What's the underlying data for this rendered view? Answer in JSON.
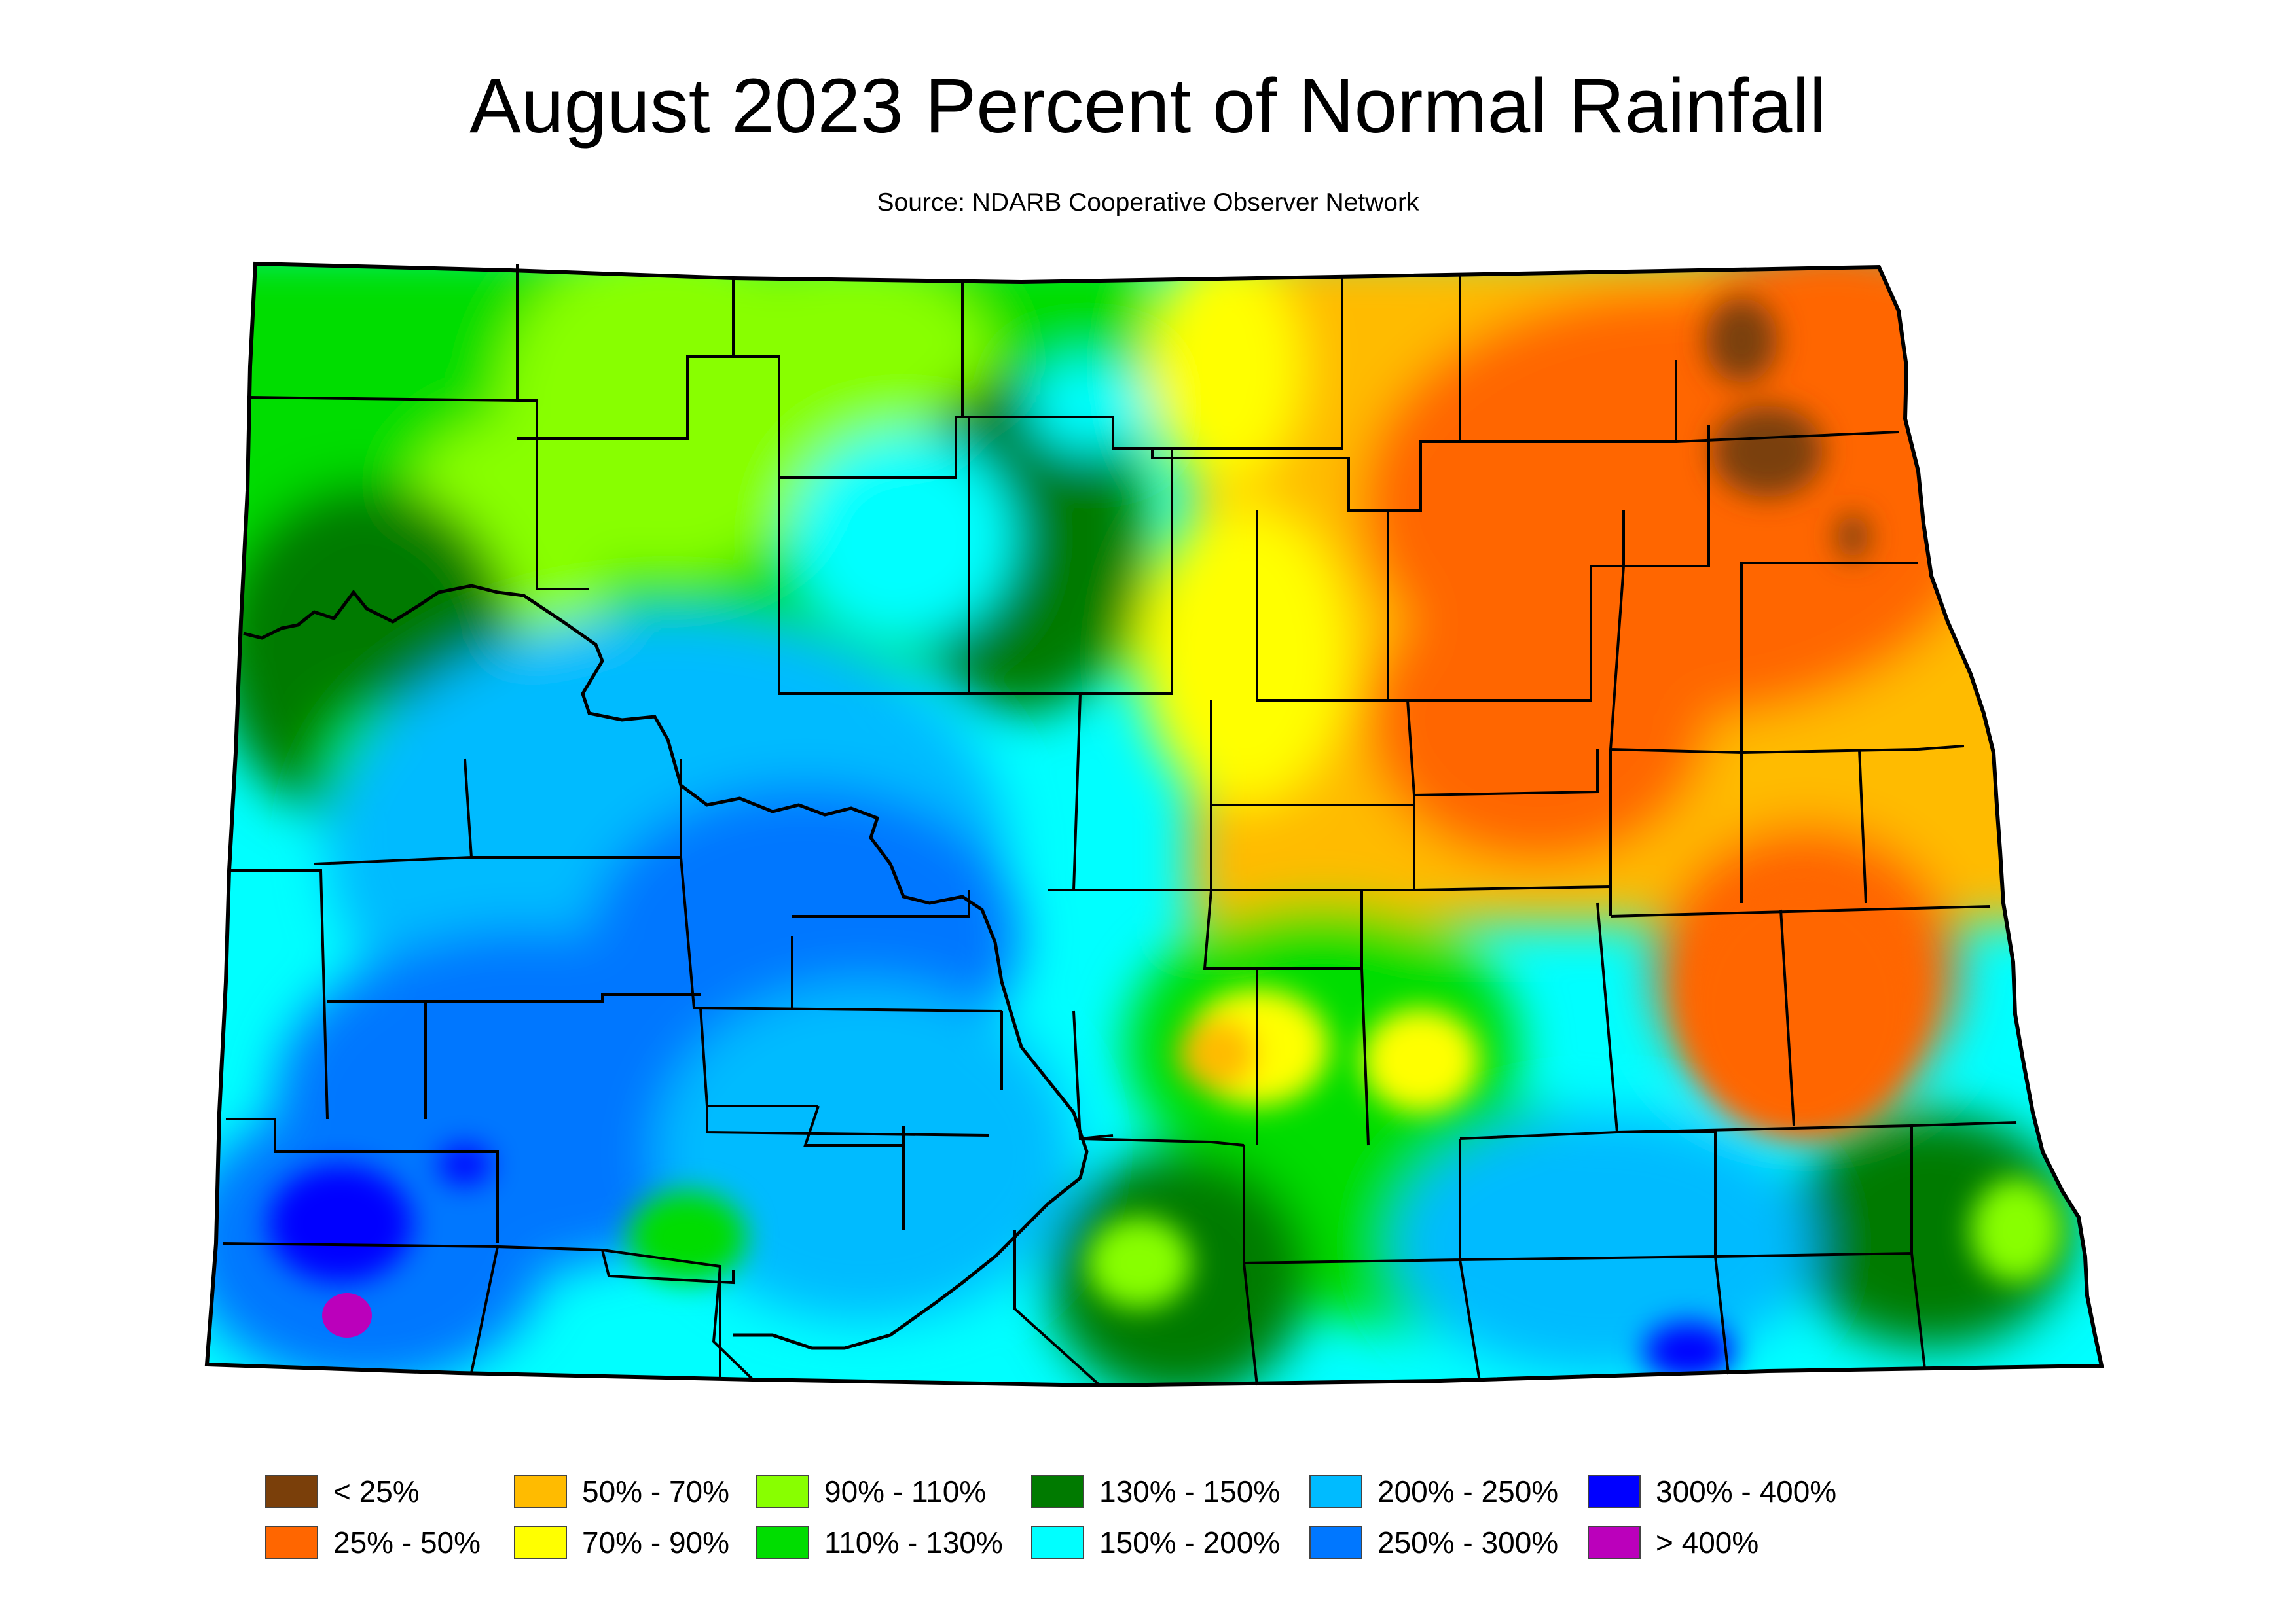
{
  "title": "August 2023 Percent of Normal Rainfall",
  "subtitle": "Source: NDARB Cooperative Observer Network",
  "legend": [
    {
      "label": "< 25%",
      "color": "#7a3f0a"
    },
    {
      "label": "25% - 50%",
      "color": "#ff6600"
    },
    {
      "label": "50% - 70%",
      "color": "#ffbb00"
    },
    {
      "label": "70% - 90%",
      "color": "#ffff00"
    },
    {
      "label": "90% - 110%",
      "color": "#88ff00"
    },
    {
      "label": "110% - 130%",
      "color": "#00dd00"
    },
    {
      "label": "130% - 150%",
      "color": "#007a00"
    },
    {
      "label": "150% - 200%",
      "color": "#00ffff"
    },
    {
      "label": "200% - 250%",
      "color": "#00bbff"
    },
    {
      "label": "250% - 300%",
      "color": "#0077ff"
    },
    {
      "label": "300% - 400%",
      "color": "#0000ff"
    },
    {
      "label": "> 400%",
      "color": "#bb00bb"
    }
  ]
}
